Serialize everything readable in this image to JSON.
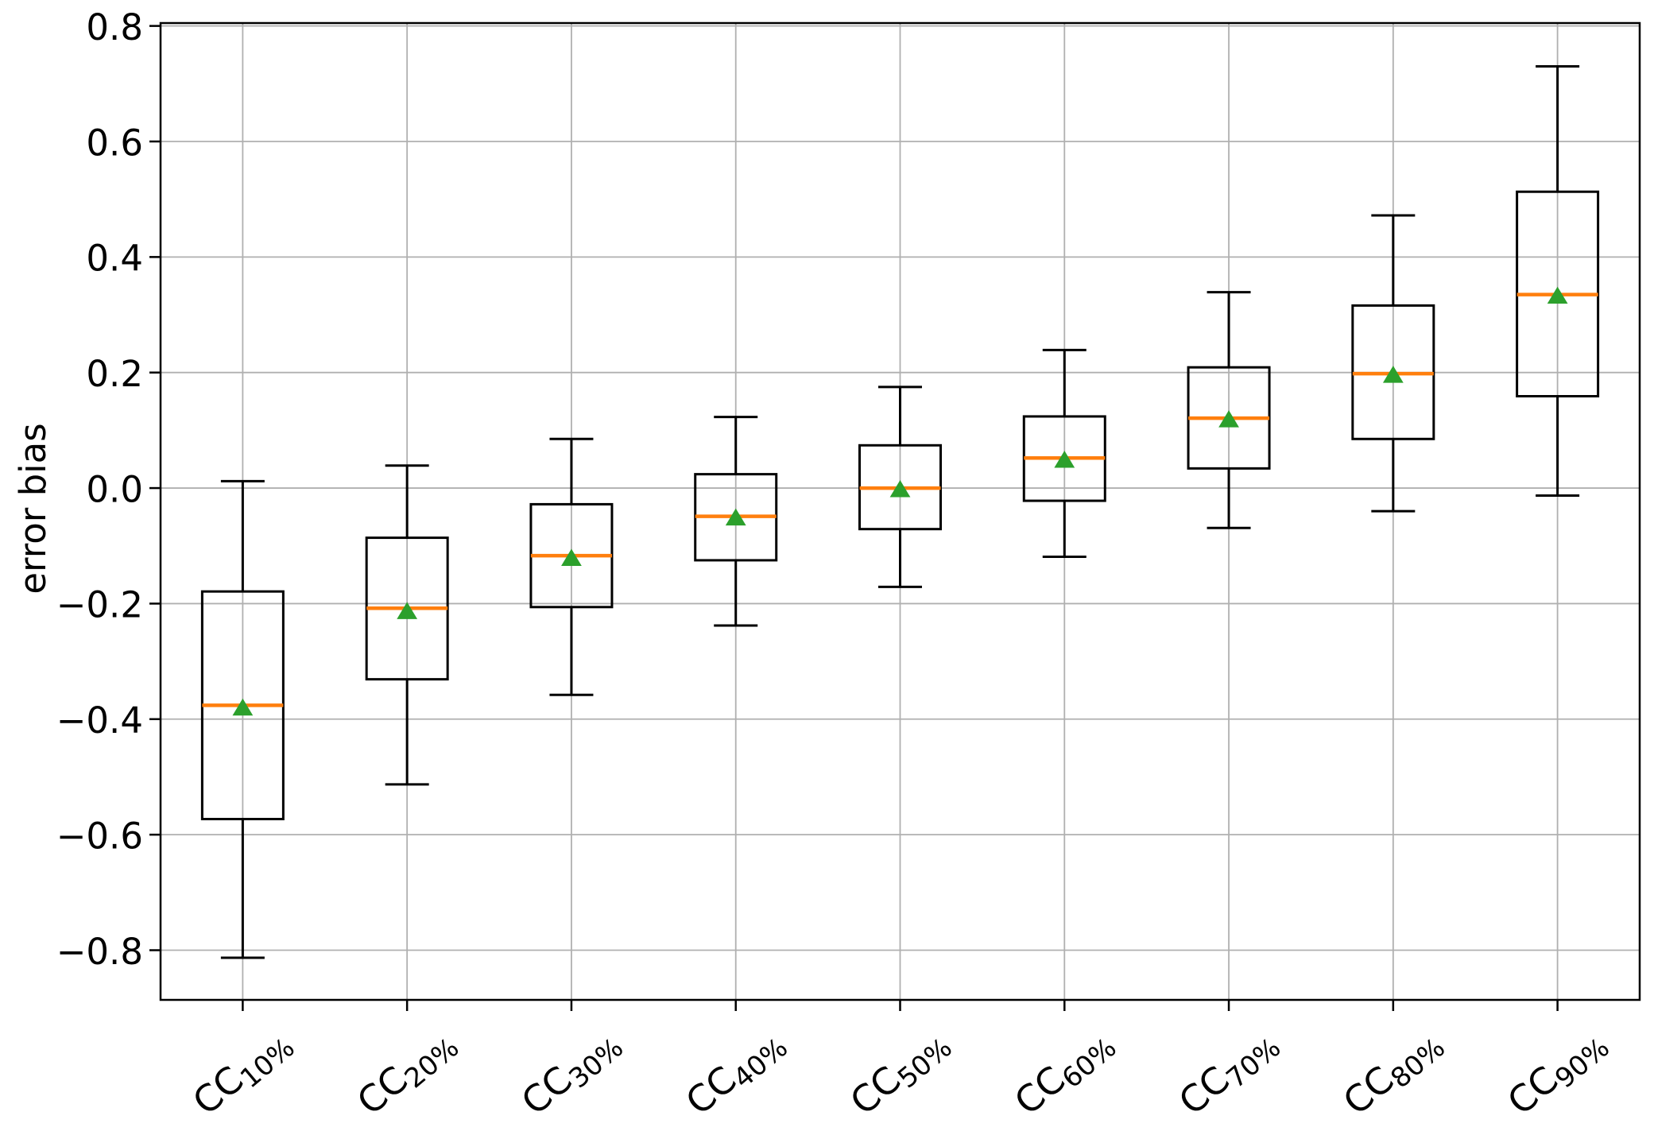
{
  "chart_data": {
    "type": "boxplot",
    "title": "",
    "xlabel": "",
    "ylabel": "error bias",
    "grid": true,
    "legend": "none",
    "ylim": [
      -0.886,
      0.805
    ],
    "y_ticks": [
      0.8,
      0.6,
      0.4,
      0.2,
      0.0,
      -0.2,
      -0.4,
      -0.6,
      -0.8
    ],
    "y_tick_labels": [
      "0.8",
      "0.6",
      "0.4",
      "0.2",
      "0.0",
      "−0.2",
      "−0.4",
      "−0.6",
      "−0.8"
    ],
    "categories": [
      "CC10%",
      "CC20%",
      "CC30%",
      "CC40%",
      "CC50%",
      "CC60%",
      "CC70%",
      "CC80%",
      "CC90%"
    ],
    "x_tick_labels": [
      {
        "base": "CC",
        "sub": "10%"
      },
      {
        "base": "CC",
        "sub": "20%"
      },
      {
        "base": "CC",
        "sub": "30%"
      },
      {
        "base": "CC",
        "sub": "40%"
      },
      {
        "base": "CC",
        "sub": "50%"
      },
      {
        "base": "CC",
        "sub": "60%"
      },
      {
        "base": "CC",
        "sub": "70%"
      },
      {
        "base": "CC",
        "sub": "80%"
      },
      {
        "base": "CC",
        "sub": "90%"
      }
    ],
    "boxes": [
      {
        "category": "CC10%",
        "whisker_low": -0.813,
        "q1": -0.573,
        "median": -0.376,
        "mean": -0.38,
        "q3": -0.179,
        "whisker_high": 0.012
      },
      {
        "category": "CC20%",
        "whisker_low": -0.513,
        "q1": -0.331,
        "median": -0.208,
        "mean": -0.213,
        "q3": -0.086,
        "whisker_high": 0.039
      },
      {
        "category": "CC30%",
        "whisker_low": -0.358,
        "q1": -0.206,
        "median": -0.117,
        "mean": -0.121,
        "q3": -0.028,
        "whisker_high": 0.085
      },
      {
        "category": "CC40%",
        "whisker_low": -0.238,
        "q1": -0.125,
        "median": -0.049,
        "mean": -0.051,
        "q3": 0.024,
        "whisker_high": 0.123
      },
      {
        "category": "CC50%",
        "whisker_low": -0.171,
        "q1": -0.071,
        "median": 0.0,
        "mean": -0.002,
        "q3": 0.074,
        "whisker_high": 0.175
      },
      {
        "category": "CC60%",
        "whisker_low": -0.119,
        "q1": -0.022,
        "median": 0.052,
        "mean": 0.049,
        "q3": 0.124,
        "whisker_high": 0.239
      },
      {
        "category": "CC70%",
        "whisker_low": -0.069,
        "q1": 0.034,
        "median": 0.121,
        "mean": 0.119,
        "q3": 0.209,
        "whisker_high": 0.339
      },
      {
        "category": "CC80%",
        "whisker_low": -0.04,
        "q1": 0.085,
        "median": 0.198,
        "mean": 0.196,
        "q3": 0.316,
        "whisker_high": 0.472
      },
      {
        "category": "CC90%",
        "whisker_low": -0.013,
        "q1": 0.159,
        "median": 0.335,
        "mean": 0.333,
        "q3": 0.513,
        "whisker_high": 0.73
      }
    ],
    "colors": {
      "box_line": "#000000",
      "whisker_line": "#000000",
      "median_line": "#ff7f0e",
      "mean_marker": "#2ca02c",
      "grid_line": "#b0b0b0",
      "axis_line": "#000000",
      "background": "#ffffff"
    },
    "mean_marker_shape": "triangle-up"
  }
}
